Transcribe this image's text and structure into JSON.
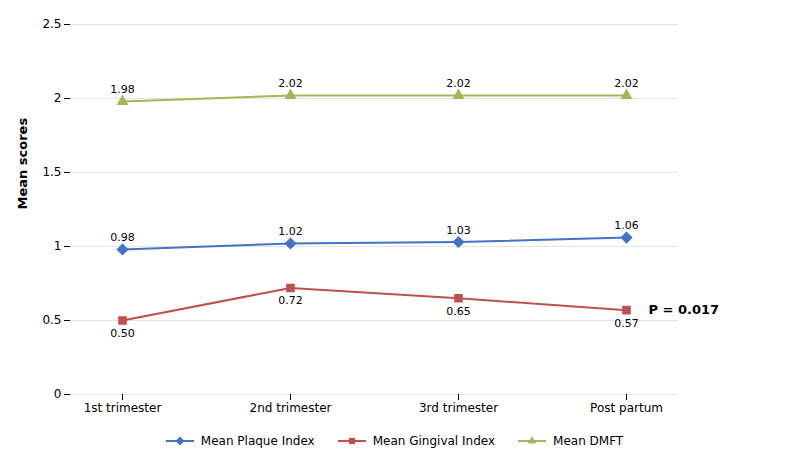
{
  "chart_data": {
    "type": "line",
    "categories": [
      "1st trimester",
      "2nd trimester",
      "3rd trimester",
      "Post partum"
    ],
    "series": [
      {
        "name": "Mean Plaque Index",
        "color": "#4472C4",
        "marker": "diamond",
        "values": [
          0.98,
          1.02,
          1.03,
          1.06
        ]
      },
      {
        "name": "Mean Gingival Index",
        "color": "#C0504D",
        "marker": "square",
        "values": [
          0.5,
          0.72,
          0.65,
          0.57
        ],
        "value_labels": [
          "0.50",
          "0.72",
          "0.65",
          "0.57"
        ]
      },
      {
        "name": "Mean DMFT",
        "color": "#9BBB59",
        "marker": "triangle",
        "values": [
          1.98,
          2.02,
          2.02,
          2.02
        ]
      }
    ],
    "ylabel": "Mean scores",
    "ylim": [
      0,
      2.5
    ],
    "yticks": [
      0,
      0.5,
      1,
      1.5,
      2,
      2.5
    ],
    "grid": true,
    "data_labels": true,
    "legend": "bottom",
    "annotations": [
      {
        "text": "P = 0.017",
        "series": "Mean Gingival Index"
      }
    ]
  }
}
